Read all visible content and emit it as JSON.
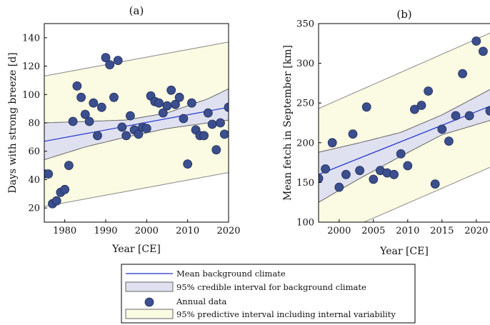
{
  "legend": {
    "items": [
      {
        "label": "Mean background climate",
        "kind": "line",
        "color": "#2233cc"
      },
      {
        "label": "95% credible interval for background climate",
        "kind": "band",
        "color": "#dfe1f0"
      },
      {
        "label": "Annual data",
        "kind": "marker",
        "color": "#3b4f8f"
      },
      {
        "label": "95% predictive interval including internal variability",
        "kind": "band",
        "color": "#fbfbe4"
      }
    ]
  },
  "chart_data": [
    {
      "type": "scatter",
      "title": "(a)",
      "xlabel": "Year [CE]",
      "ylabel": "Days with strong breeze [d]",
      "xlim": [
        1975,
        2020
      ],
      "ylim": [
        10,
        150
      ],
      "xticks": [
        1980,
        1990,
        2000,
        2010,
        2020
      ],
      "yticks": [
        20,
        40,
        60,
        80,
        100,
        120,
        140
      ],
      "grid": false,
      "points": [
        [
          1975,
          44
        ],
        [
          1976,
          44
        ],
        [
          1977,
          23
        ],
        [
          1978,
          25
        ],
        [
          1979,
          31
        ],
        [
          1980,
          33
        ],
        [
          1981,
          50
        ],
        [
          1982,
          81
        ],
        [
          1983,
          106
        ],
        [
          1984,
          98
        ],
        [
          1985,
          86
        ],
        [
          1986,
          81
        ],
        [
          1987,
          94
        ],
        [
          1988,
          71
        ],
        [
          1989,
          91
        ],
        [
          1990,
          126
        ],
        [
          1991,
          121
        ],
        [
          1992,
          98
        ],
        [
          1993,
          124
        ],
        [
          1994,
          77
        ],
        [
          1995,
          71
        ],
        [
          1996,
          85
        ],
        [
          1997,
          75
        ],
        [
          1998,
          72
        ],
        [
          1999,
          77
        ],
        [
          2000,
          76
        ],
        [
          2001,
          99
        ],
        [
          2002,
          95
        ],
        [
          2003,
          94
        ],
        [
          2004,
          87
        ],
        [
          2005,
          92
        ],
        [
          2006,
          103
        ],
        [
          2007,
          93
        ],
        [
          2008,
          98
        ],
        [
          2009,
          83
        ],
        [
          2010,
          51
        ],
        [
          2011,
          94
        ],
        [
          2012,
          75
        ],
        [
          2013,
          71
        ],
        [
          2014,
          71
        ],
        [
          2015,
          87
        ],
        [
          2016,
          79
        ],
        [
          2017,
          61
        ],
        [
          2018,
          80
        ],
        [
          2019,
          72
        ],
        [
          2020,
          91
        ]
      ],
      "mean_line": [
        [
          1975,
          67
        ],
        [
          2020,
          91
        ]
      ],
      "credible_interval": {
        "x": [
          1975,
          1985,
          1995,
          2005,
          2015,
          2020
        ],
        "lower": [
          54,
          63,
          70,
          76,
          80,
          82
        ],
        "upper": [
          80,
          81,
          82,
          87,
          97,
          104
        ]
      },
      "predictive_interval": {
        "x": [
          1975,
          2020
        ],
        "lower": [
          21,
          45
        ],
        "upper": [
          113,
          137
        ]
      }
    },
    {
      "type": "scatter",
      "title": "(b)",
      "xlabel": "Year [CE]",
      "ylabel": "Mean fetch in September [km]",
      "xlim": [
        1997,
        2022
      ],
      "ylim": [
        100,
        350
      ],
      "xticks": [
        2000,
        2005,
        2010,
        2015,
        2020
      ],
      "yticks": [
        100,
        150,
        200,
        250,
        300,
        350
      ],
      "grid": false,
      "points": [
        [
          1997,
          155
        ],
        [
          1998,
          167
        ],
        [
          1999,
          200
        ],
        [
          2000,
          144
        ],
        [
          2001,
          160
        ],
        [
          2002,
          211
        ],
        [
          2003,
          165
        ],
        [
          2004,
          245
        ],
        [
          2005,
          154
        ],
        [
          2006,
          165
        ],
        [
          2007,
          162
        ],
        [
          2008,
          160
        ],
        [
          2009,
          186
        ],
        [
          2010,
          171
        ],
        [
          2011,
          242
        ],
        [
          2012,
          247
        ],
        [
          2013,
          265
        ],
        [
          2014,
          148
        ],
        [
          2015,
          217
        ],
        [
          2016,
          202
        ],
        [
          2017,
          234
        ],
        [
          2018,
          287
        ],
        [
          2019,
          234
        ],
        [
          2020,
          328
        ],
        [
          2021,
          315
        ],
        [
          2022,
          240
        ]
      ],
      "mean_line": [
        [
          1997,
          160
        ],
        [
          2022,
          246
        ]
      ],
      "credible_interval": {
        "x": [
          1997,
          2003,
          2009,
          2015,
          2022
        ],
        "lower": [
          125,
          155,
          183,
          210,
          228
        ],
        "upper": [
          188,
          200,
          213,
          235,
          267
        ]
      },
      "predictive_interval": {
        "x": [
          1997,
          2022
        ],
        "lower": [
          75,
          169
        ],
        "upper": [
          243,
          338
        ]
      }
    }
  ]
}
